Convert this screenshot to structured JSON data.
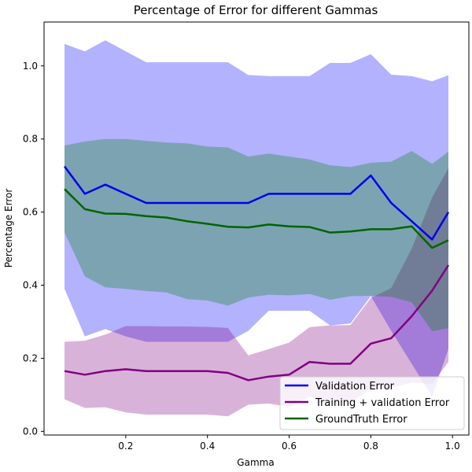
{
  "chart_data": {
    "type": "line",
    "title": "Percentage of Error for different Gammas",
    "xlabel": "Gamma",
    "ylabel": "Percentage Error",
    "xlim": [
      0.0,
      1.04
    ],
    "ylim": [
      -0.01,
      1.12
    ],
    "xticks": [
      0.2,
      0.4,
      0.6,
      0.8,
      1.0
    ],
    "xtick_labels": [
      "0.2",
      "0.4",
      "0.6",
      "0.8",
      "1.0"
    ],
    "yticks": [
      0.0,
      0.2,
      0.4,
      0.6,
      0.8,
      1.0
    ],
    "ytick_labels": [
      "0.0",
      "0.2",
      "0.4",
      "0.6",
      "0.8",
      "1.0"
    ],
    "grid": false,
    "legend_position": "bottom-right",
    "x": [
      0.05,
      0.1,
      0.15,
      0.2,
      0.25,
      0.3,
      0.35,
      0.4,
      0.45,
      0.5,
      0.55,
      0.6,
      0.65,
      0.7,
      0.75,
      0.8,
      0.85,
      0.9,
      0.95,
      0.99
    ],
    "series": [
      {
        "name": "Validation Error",
        "color": "#0000ee",
        "fill_color": "#0000ff",
        "fill_opacity": 0.3,
        "values": [
          0.725,
          0.65,
          0.675,
          0.65,
          0.625,
          0.625,
          0.625,
          0.625,
          0.625,
          0.625,
          0.65,
          0.65,
          0.65,
          0.65,
          0.65,
          0.7,
          0.625,
          0.575,
          0.525,
          0.6
        ],
        "upper": [
          1.06,
          1.04,
          1.07,
          1.04,
          1.01,
          1.01,
          1.01,
          1.01,
          1.01,
          0.975,
          0.972,
          0.972,
          0.972,
          1.008,
          1.008,
          1.032,
          0.976,
          0.972,
          0.958,
          0.974
        ],
        "lower": [
          0.39,
          0.26,
          0.28,
          0.26,
          0.245,
          0.245,
          0.245,
          0.245,
          0.245,
          0.275,
          0.33,
          0.33,
          0.33,
          0.29,
          0.295,
          0.37,
          0.275,
          0.185,
          0.095,
          0.226
        ]
      },
      {
        "name": "Training + validation Error",
        "color": "#800080",
        "fill_color": "#800080",
        "fill_opacity": 0.3,
        "values": [
          0.165,
          0.155,
          0.165,
          0.17,
          0.165,
          0.165,
          0.165,
          0.165,
          0.16,
          0.14,
          0.15,
          0.155,
          0.19,
          0.185,
          0.185,
          0.24,
          0.255,
          0.315,
          0.385,
          0.455
        ],
        "upper": [
          0.245,
          0.248,
          0.265,
          0.288,
          0.288,
          0.287,
          0.287,
          0.286,
          0.283,
          0.208,
          0.225,
          0.243,
          0.285,
          0.29,
          0.291,
          0.365,
          0.392,
          0.5,
          0.64,
          0.72
        ],
        "lower": [
          0.088,
          0.064,
          0.066,
          0.052,
          0.046,
          0.046,
          0.046,
          0.046,
          0.041,
          0.073,
          0.076,
          0.067,
          0.095,
          0.08,
          0.079,
          0.115,
          0.118,
          0.134,
          0.13,
          0.19
        ]
      },
      {
        "name": "GroundTruth Error",
        "color": "#006400",
        "fill_color": "#008000",
        "fill_opacity": 0.3,
        "values": [
          0.663,
          0.608,
          0.596,
          0.595,
          0.589,
          0.585,
          0.575,
          0.568,
          0.56,
          0.558,
          0.566,
          0.561,
          0.559,
          0.544,
          0.547,
          0.553,
          0.553,
          0.561,
          0.502,
          0.523
        ],
        "upper": [
          0.782,
          0.793,
          0.8,
          0.8,
          0.795,
          0.79,
          0.788,
          0.779,
          0.777,
          0.752,
          0.76,
          0.752,
          0.744,
          0.728,
          0.723,
          0.735,
          0.738,
          0.767,
          0.732,
          0.765
        ],
        "lower": [
          0.545,
          0.424,
          0.394,
          0.39,
          0.384,
          0.38,
          0.362,
          0.358,
          0.344,
          0.366,
          0.374,
          0.372,
          0.376,
          0.36,
          0.37,
          0.371,
          0.368,
          0.353,
          0.274,
          0.282
        ]
      }
    ]
  }
}
